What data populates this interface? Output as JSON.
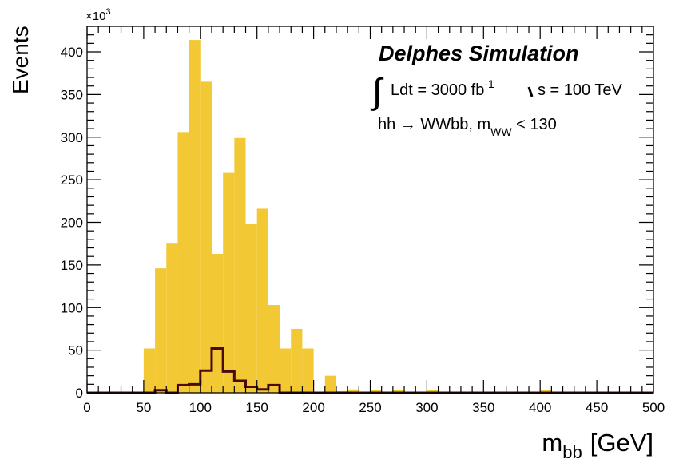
{
  "chart_data": {
    "type": "bar",
    "title": "Delphes Simulation",
    "xlabel": "m",
    "xlabel_sub": "bb",
    "xlabel_unit": "[GeV]",
    "ylabel": "Events",
    "y_multiplier": "×10",
    "y_multiplier_exp": "3",
    "xlim": [
      0,
      500
    ],
    "ylim": [
      0,
      430
    ],
    "x_ticks": [
      0,
      50,
      100,
      150,
      200,
      250,
      300,
      350,
      400,
      450,
      500
    ],
    "y_ticks": [
      0,
      50,
      100,
      150,
      200,
      250,
      300,
      350,
      400
    ],
    "bin_width": 10,
    "annotations": {
      "lumi_text": "Ldt = 3000 fb",
      "lumi_sup": "-1",
      "energy_text": "s = 100 TeV",
      "process_text": "hh →  WWbb, m",
      "process_sub": "WW",
      "process_tail": " < 130"
    },
    "colors": {
      "background_fill": "#f2c935",
      "signal_line": "#4a0a10"
    },
    "series": [
      {
        "style": "filled",
        "bin_edges_low": [
          0,
          10,
          20,
          30,
          40,
          50,
          60,
          70,
          80,
          90,
          100,
          110,
          120,
          130,
          140,
          150,
          160,
          170,
          180,
          190,
          200,
          210,
          220,
          230,
          240,
          250,
          260,
          270,
          280,
          290,
          300,
          310,
          320,
          330,
          340,
          350,
          360,
          370,
          380,
          390,
          400,
          410,
          420,
          430,
          440,
          450,
          460,
          470,
          480,
          490
        ],
        "values": [
          0,
          0,
          0,
          0,
          1,
          52,
          146,
          175,
          306,
          414,
          365,
          163,
          258,
          299,
          198,
          216,
          103,
          52,
          75,
          52,
          1,
          20,
          2,
          4,
          1,
          3,
          1,
          3,
          0,
          0,
          3,
          0,
          0,
          0,
          0,
          0,
          0,
          0,
          0,
          0,
          3,
          0,
          0,
          0,
          0,
          0,
          0,
          0,
          0,
          0
        ]
      },
      {
        "style": "step",
        "bin_edges_low": [
          0,
          10,
          20,
          30,
          40,
          50,
          60,
          70,
          80,
          90,
          100,
          110,
          120,
          130,
          140,
          150,
          160,
          170,
          180,
          190,
          200,
          210,
          220,
          230,
          240,
          250,
          260,
          270,
          280,
          290,
          300,
          310,
          320,
          330,
          340,
          350,
          360,
          370,
          380,
          390,
          400,
          410,
          420,
          430,
          440,
          450,
          460,
          470,
          480,
          490
        ],
        "values": [
          0,
          0,
          0,
          0,
          0,
          0,
          3,
          0,
          9,
          10,
          26,
          52,
          25,
          14,
          7,
          4,
          9,
          0,
          0,
          0,
          0,
          0,
          0,
          0,
          0,
          0,
          0,
          0,
          0,
          0,
          0,
          0,
          0,
          0,
          0,
          0,
          0,
          0,
          0,
          0,
          0,
          0,
          0,
          0,
          0,
          0,
          0,
          0,
          0,
          0
        ]
      }
    ]
  }
}
